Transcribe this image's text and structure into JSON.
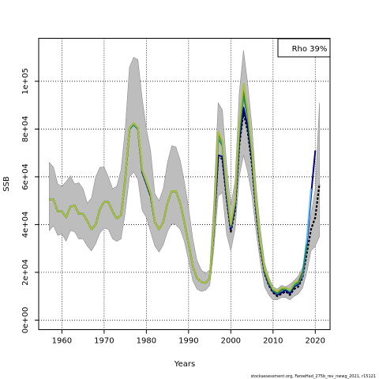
{
  "chart_data": {
    "type": "line",
    "title": "",
    "xlabel": "Years",
    "ylabel": "SSB",
    "xlim": [
      1954.5,
      2023.5
    ],
    "ylim": [
      -4000,
      118000
    ],
    "x_ticks": [
      1960,
      1970,
      1980,
      1990,
      2000,
      2010,
      2020
    ],
    "x_tick_labels": [
      "1960",
      "1970",
      "1980",
      "1990",
      "2000",
      "2010",
      "2020"
    ],
    "y_ticks": [
      0,
      20000,
      40000,
      60000,
      80000,
      100000
    ],
    "y_tick_labels": [
      "0e+00",
      "2e+04",
      "4e+04",
      "6e+04",
      "8e+04",
      "1e+05"
    ],
    "grid": true,
    "grid_style": "dotted",
    "legend_placement": "top-right",
    "annotation": "Rho 39%",
    "footnote": "stockassessment.org, FaroeHad_275b_rev_nwwg_2021, r15121",
    "confidence_band": {
      "x": [
        1957,
        1958,
        1959,
        1960,
        1961,
        1962,
        1963,
        1964,
        1965,
        1966,
        1967,
        1968,
        1969,
        1970,
        1971,
        1972,
        1973,
        1974,
        1975,
        1976,
        1977,
        1978,
        1979,
        1980,
        1981,
        1982,
        1983,
        1984,
        1985,
        1986,
        1987,
        1988,
        1989,
        1990,
        1991,
        1992,
        1993,
        1994,
        1995,
        1996,
        1997,
        1998,
        1999,
        2000,
        2001,
        2002,
        2003,
        2004,
        2005,
        2006,
        2007,
        2008,
        2009,
        2010,
        2011,
        2012,
        2013,
        2014,
        2015,
        2016,
        2017,
        2018,
        2019,
        2020,
        2021
      ],
      "upper": [
        66000,
        64000,
        57000,
        56000,
        58000,
        60500,
        57000,
        57500,
        55000,
        49000,
        51000,
        60000,
        64000,
        64000,
        60000,
        55000,
        56000,
        63000,
        80000,
        106000,
        110000,
        109000,
        93000,
        80000,
        71000,
        53000,
        50000,
        55000,
        66000,
        73000,
        72500,
        67000,
        58000,
        47000,
        34000,
        25000,
        21000,
        19500,
        21000,
        50000,
        91000,
        88000,
        65000,
        48000,
        58000,
        95000,
        113000,
        99000,
        81000,
        56000,
        38000,
        24000,
        18000,
        14000,
        13000,
        14500,
        14000,
        15000,
        16500,
        18500,
        22000,
        32000,
        44000,
        55000,
        91000
      ],
      "lower": [
        37500,
        39500,
        35500,
        36000,
        33000,
        37500,
        37000,
        34000,
        34000,
        31000,
        29000,
        32000,
        36500,
        38500,
        38000,
        34000,
        33000,
        34000,
        45000,
        60000,
        62000,
        59000,
        46000,
        43000,
        37000,
        31000,
        28500,
        31500,
        37000,
        40500,
        40000,
        38000,
        33000,
        25000,
        16500,
        13000,
        12000,
        12500,
        14500,
        30000,
        52000,
        53500,
        36000,
        29000,
        38000,
        60000,
        69000,
        62000,
        52000,
        37000,
        24000,
        14000,
        10500,
        8500,
        8500,
        9500,
        9500,
        8500,
        10000,
        11000,
        13500,
        20000,
        29000,
        31000,
        35000
      ]
    },
    "series": [
      {
        "color": "#000000",
        "dashed": true,
        "x": [
          1957,
          1958,
          1959,
          1960,
          1961,
          1962,
          1963,
          1964,
          1965,
          1966,
          1967,
          1968,
          1969,
          1970,
          1971,
          1972,
          1973,
          1974,
          1975,
          1976,
          1977,
          1978,
          1979,
          1980,
          1981,
          1982,
          1983,
          1984,
          1985,
          1986,
          1987,
          1988,
          1989,
          1990,
          1991,
          1992,
          1993,
          1994,
          1995,
          1996,
          1997,
          1998,
          1999,
          2000,
          2001,
          2002,
          2003,
          2004,
          2005,
          2006,
          2007,
          2008,
          2009,
          2010,
          2011,
          2012,
          2013,
          2014,
          2015,
          2016,
          2017,
          2018,
          2019,
          2020,
          2021
        ],
        "values": [
          50500,
          50500,
          45500,
          45500,
          43000,
          47500,
          48000,
          44500,
          44500,
          41500,
          38000,
          40000,
          46500,
          49500,
          49500,
          45500,
          42500,
          44000,
          59000,
          80000,
          82000,
          80000,
          62000,
          57000,
          52000,
          41000,
          38000,
          41000,
          49000,
          54000,
          54000,
          49000,
          41000,
          32000,
          22500,
          17500,
          16000,
          15500,
          17500,
          38000,
          68000,
          67500,
          51000,
          37000,
          46000,
          73000,
          87000,
          79000,
          65000,
          45000,
          30000,
          19500,
          14500,
          11500,
          10000,
          11000,
          12000,
          10500,
          13000,
          14000,
          18000,
          28000,
          38000,
          43000,
          57000
        ]
      },
      {
        "color": "#000080",
        "x": [
          1957,
          1958,
          1959,
          1960,
          1961,
          1962,
          1963,
          1964,
          1965,
          1966,
          1967,
          1968,
          1969,
          1970,
          1971,
          1972,
          1973,
          1974,
          1975,
          1976,
          1977,
          1978,
          1979,
          1980,
          1981,
          1982,
          1983,
          1984,
          1985,
          1986,
          1987,
          1988,
          1989,
          1990,
          1991,
          1992,
          1993,
          1994,
          1995,
          1996,
          1997,
          1998,
          1999,
          2000,
          2001,
          2002,
          2003,
          2004,
          2005,
          2006,
          2007,
          2008,
          2009,
          2010,
          2011,
          2012,
          2013,
          2014,
          2015,
          2016,
          2017,
          2018,
          2019,
          2020
        ],
        "values": [
          50500,
          50500,
          45500,
          45500,
          43000,
          47500,
          48000,
          44500,
          44500,
          41500,
          38000,
          40000,
          46500,
          49500,
          49500,
          45500,
          42500,
          44000,
          59000,
          80000,
          82000,
          80000,
          62000,
          57000,
          52000,
          41000,
          38000,
          41000,
          49000,
          54000,
          54000,
          49000,
          41000,
          32000,
          22500,
          17500,
          16000,
          15500,
          17500,
          38000,
          69000,
          68500,
          52000,
          38000,
          47000,
          75000,
          89000,
          81000,
          67000,
          46000,
          31000,
          20000,
          15000,
          12000,
          10500,
          11500,
          12500,
          11000,
          14000,
          15000,
          18500,
          32000,
          52000,
          71000
        ]
      },
      {
        "color": "#5bc0ff",
        "x": [
          2015,
          2016,
          2017,
          2018,
          2019
        ],
        "values": [
          14500,
          15500,
          19000,
          34000,
          55000
        ]
      },
      {
        "color": "#1a8f80",
        "x": [
          1957,
          1958,
          1959,
          1960,
          1961,
          1962,
          1963,
          1964,
          1965,
          1966,
          1967,
          1968,
          1969,
          1970,
          1971,
          1972,
          1973,
          1974,
          1975,
          1976,
          1977,
          1978,
          1979,
          1980,
          1981,
          1982,
          1983,
          1984,
          1985,
          1986,
          1987,
          1988,
          1989,
          1990,
          1991,
          1992,
          1993,
          1994,
          1995,
          1996,
          1997,
          1998,
          1999,
          2000,
          2001,
          2002,
          2003,
          2004,
          2005,
          2006,
          2007,
          2008,
          2009,
          2010,
          2011,
          2012,
          2013,
          2014,
          2015,
          2016,
          2017,
          2018
        ],
        "values": [
          50500,
          50500,
          45500,
          45500,
          43000,
          47500,
          48000,
          44500,
          44500,
          41500,
          38000,
          40000,
          46500,
          49500,
          49500,
          45500,
          42500,
          44000,
          59000,
          80000,
          82000,
          80000,
          62500,
          57500,
          52500,
          41000,
          38000,
          41000,
          49000,
          54000,
          54000,
          49000,
          41000,
          32000,
          22500,
          17500,
          16000,
          15500,
          17500,
          38500,
          76000,
          73000,
          54000,
          39000,
          48500,
          78000,
          94000,
          85000,
          69000,
          47000,
          31500,
          20500,
          15500,
          12500,
          11000,
          12500,
          13000,
          12000,
          14500,
          15500,
          19500,
          32000
        ]
      },
      {
        "color": "#4d7a1a",
        "x": [
          1957,
          1958,
          1959,
          1960,
          1961,
          1962,
          1963,
          1964,
          1965,
          1966,
          1967,
          1968,
          1969,
          1970,
          1971,
          1972,
          1973,
          1974,
          1975,
          1976,
          1977,
          1978,
          1979,
          1980,
          1981,
          1982,
          1983,
          1984,
          1985,
          1986,
          1987,
          1988,
          1989,
          1990,
          1991,
          1992,
          1993,
          1994,
          1995,
          1996,
          1997,
          1998,
          1999,
          2000,
          2001,
          2002,
          2003,
          2004,
          2005,
          2006,
          2007,
          2008,
          2009,
          2010,
          2011,
          2012,
          2013,
          2014,
          2015,
          2016,
          2017
        ],
        "values": [
          50500,
          50500,
          45500,
          45500,
          43000,
          47500,
          48000,
          44500,
          44500,
          41500,
          38000,
          40000,
          46500,
          49500,
          49500,
          45500,
          42500,
          44000,
          59000,
          80500,
          82500,
          80500,
          63000,
          58000,
          53000,
          41000,
          38000,
          41000,
          49000,
          54000,
          54000,
          49000,
          41000,
          32000,
          22500,
          17500,
          16000,
          15500,
          17500,
          39000,
          78000,
          74500,
          55000,
          39500,
          49500,
          80000,
          97000,
          87000,
          70000,
          48000,
          32000,
          21000,
          16000,
          13000,
          11500,
          13000,
          13500,
          12500,
          15500,
          16000,
          20000
        ]
      },
      {
        "color": "#a8c23a",
        "x": [
          1957,
          1958,
          1959,
          1960,
          1961,
          1962,
          1963,
          1964,
          1965,
          1966,
          1967,
          1968,
          1969,
          1970,
          1971,
          1972,
          1973,
          1974,
          1975,
          1976,
          1977,
          1978,
          1979,
          1980,
          1981,
          1982,
          1983,
          1984,
          1985,
          1986,
          1987,
          1988,
          1989,
          1990,
          1991,
          1992,
          1993,
          1994,
          1995,
          1996,
          1997,
          1998,
          1999,
          2000,
          2001,
          2002,
          2003,
          2004,
          2005,
          2006,
          2007,
          2008,
          2009,
          2010,
          2011,
          2012,
          2013,
          2014,
          2015,
          2016
        ],
        "values": [
          50500,
          50500,
          45500,
          45500,
          43000,
          47500,
          48000,
          44500,
          44500,
          41500,
          38000,
          40000,
          46500,
          49500,
          49500,
          45500,
          42500,
          44000,
          59000,
          80500,
          82500,
          80500,
          63000,
          58000,
          53000,
          41000,
          38000,
          41000,
          49000,
          54000,
          54000,
          49000,
          41000,
          32000,
          22500,
          17500,
          16000,
          15500,
          17500,
          39500,
          79000,
          75000,
          55000,
          40000,
          50000,
          81000,
          99000,
          88000,
          71000,
          48500,
          32500,
          21500,
          16500,
          13000,
          12000,
          13500,
          13500,
          12500,
          15500,
          16500
        ]
      }
    ]
  }
}
